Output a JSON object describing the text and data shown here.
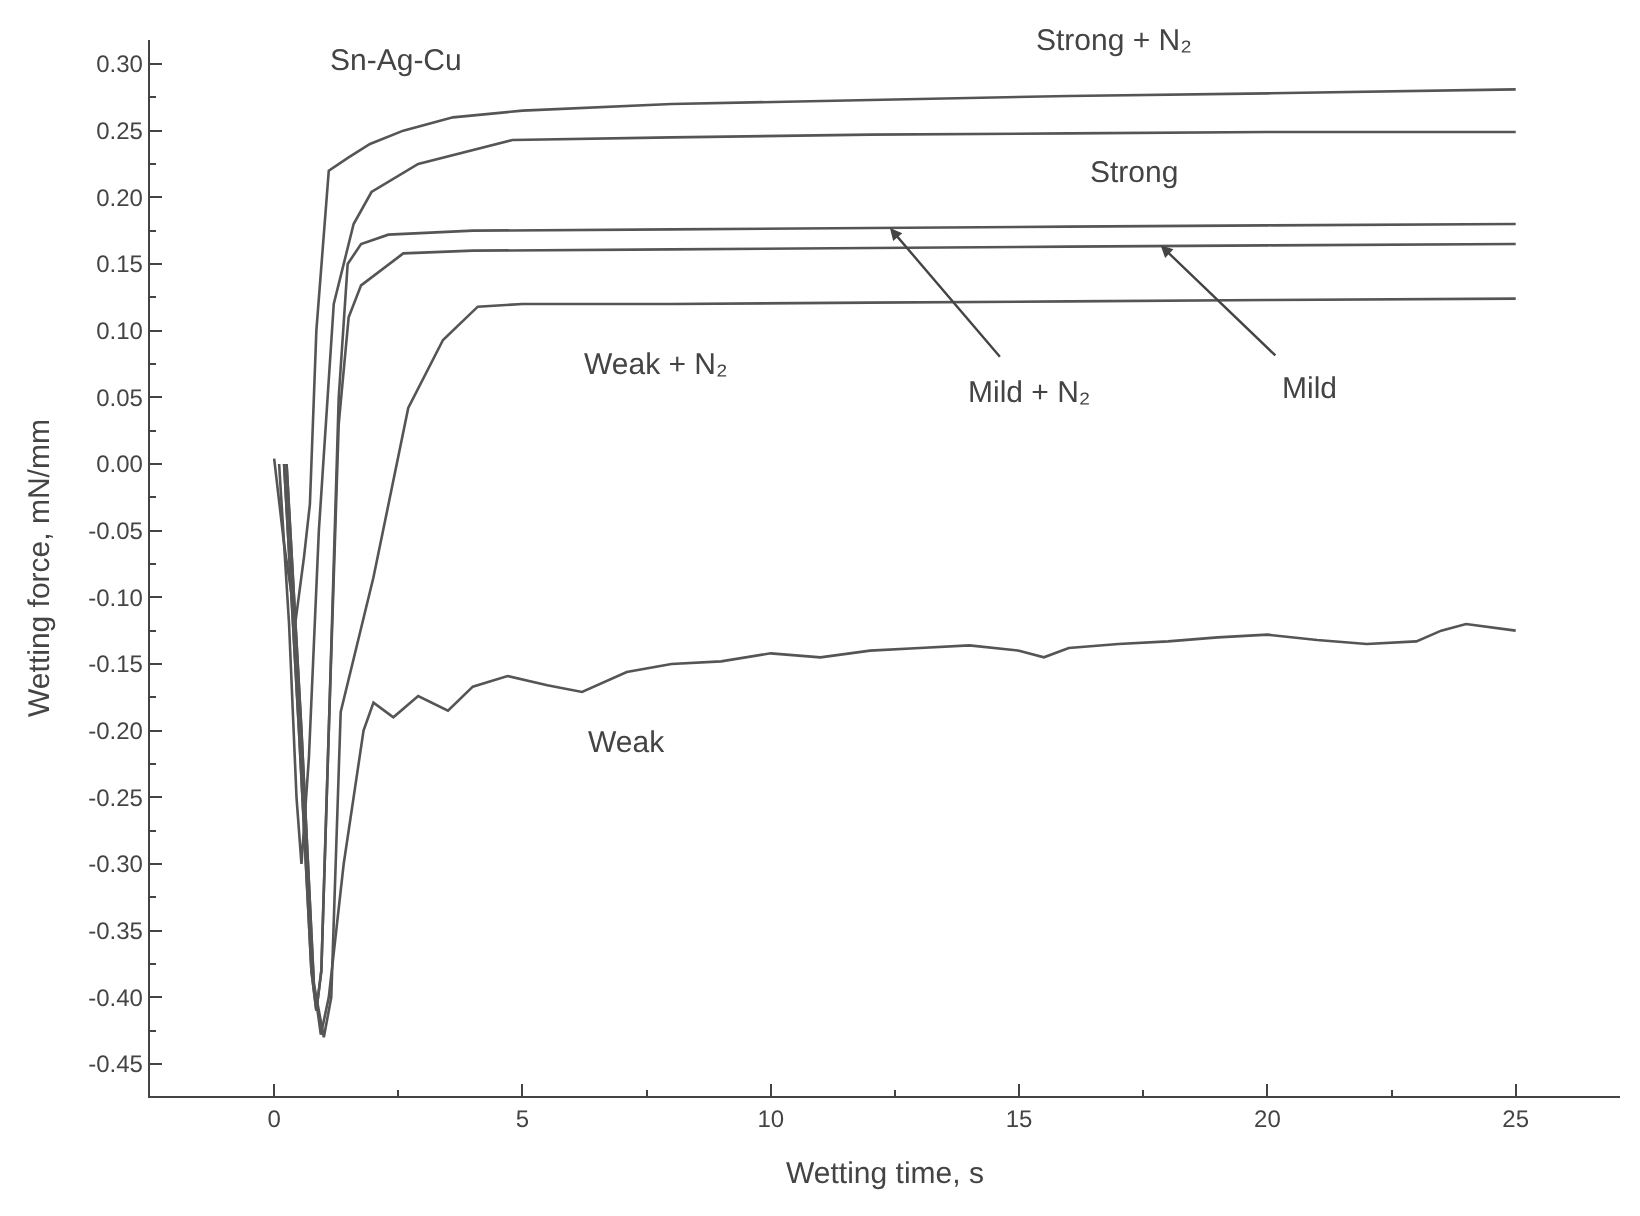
{
  "chart_data": {
    "type": "line",
    "xlabel": "Wetting time, s",
    "ylabel": "Wetting force, mN/mm",
    "xlim": [
      -2.5,
      27.1
    ],
    "ylim": [
      -0.474,
      0.318
    ],
    "xticks": [
      0,
      5,
      10,
      15,
      20,
      25
    ],
    "yticks": [
      {
        "value": 0.3,
        "label": "0.30"
      },
      {
        "value": 0.25,
        "label": "0.25"
      },
      {
        "value": 0.2,
        "label": "0.20"
      },
      {
        "value": 0.15,
        "label": "0.15"
      },
      {
        "value": 0.1,
        "label": "0.10"
      },
      {
        "value": 0.05,
        "label": "0.05"
      },
      {
        "value": 0,
        "label": "0.00"
      },
      {
        "value": -0.05,
        "label": "-0.05"
      },
      {
        "value": -0.1,
        "label": "-0.10"
      },
      {
        "value": -0.15,
        "label": "-0.15"
      },
      {
        "value": -0.2,
        "label": "-0.20"
      },
      {
        "value": -0.25,
        "label": "-0.25"
      },
      {
        "value": -0.3,
        "label": "-0.30"
      },
      {
        "value": -0.35,
        "label": "-0.35"
      },
      {
        "value": -0.4,
        "label": "-0.40"
      },
      {
        "value": -0.45,
        "label": "-0.45"
      }
    ],
    "marker": "none",
    "line_style": "solid",
    "series": [
      {
        "color": "#555555",
        "x": [
          0,
          0.2,
          0.43,
          0.6,
          0.72,
          0.85,
          1.1,
          1.5,
          1.93,
          2.6,
          3.6,
          5,
          8,
          12,
          16,
          20,
          25
        ],
        "values": [
          0.004,
          -0.06,
          -0.118,
          -0.07,
          -0.03,
          0.1,
          0.22,
          0.23,
          0.24,
          0.25,
          0.26,
          0.265,
          0.27,
          0.273,
          0.276,
          0.278,
          0.281
        ]
      },
      {
        "color": "#555555",
        "x": [
          0.1,
          0.3,
          0.45,
          0.55,
          0.7,
          0.9,
          1.2,
          1.6,
          1.96,
          2.9,
          4.8,
          8,
          12,
          16,
          20,
          25
        ],
        "values": [
          0.0,
          -0.12,
          -0.25,
          -0.3,
          -0.22,
          -0.05,
          0.12,
          0.18,
          0.204,
          0.225,
          0.243,
          0.245,
          0.247,
          0.248,
          0.249,
          0.249
        ]
      },
      {
        "color": "#555555",
        "x": [
          0.2,
          0.5,
          0.75,
          0.85,
          0.95,
          1.1,
          1.3,
          1.48,
          1.75,
          2.3,
          4,
          8,
          12,
          16,
          20,
          25
        ],
        "values": [
          0,
          -0.2,
          -0.38,
          -0.41,
          -0.38,
          -0.2,
          0.05,
          0.15,
          0.165,
          0.172,
          0.175,
          0.176,
          0.177,
          0.178,
          0.179,
          0.18
        ]
      },
      {
        "color": "#555555",
        "x": [
          0.2,
          0.5,
          0.75,
          0.85,
          0.95,
          1.1,
          1.3,
          1.5,
          1.75,
          2.6,
          4,
          8,
          12,
          16,
          20,
          25
        ],
        "values": [
          0,
          -0.2,
          -0.38,
          -0.41,
          -0.38,
          -0.2,
          0.03,
          0.11,
          0.134,
          0.158,
          0.16,
          0.161,
          0.162,
          0.163,
          0.164,
          0.165
        ]
      },
      {
        "color": "#555555",
        "x": [
          0.25,
          0.55,
          0.8,
          1.0,
          1.15,
          1.34,
          2.0,
          2.7,
          3.4,
          4.1,
          5,
          8,
          12,
          16,
          20,
          25
        ],
        "values": [
          0,
          -0.2,
          -0.39,
          -0.43,
          -0.4,
          -0.186,
          -0.085,
          0.042,
          0.093,
          0.118,
          0.12,
          0.12,
          0.121,
          0.122,
          0.123,
          0.124
        ]
      },
      {
        "color": "#555555",
        "x": [
          0.25,
          0.55,
          0.8,
          0.94,
          1.1,
          1.4,
          1.8,
          2.0,
          2.4,
          2.9,
          3.5,
          4.0,
          4.7,
          5.5,
          6.2,
          7.1,
          8,
          9,
          10,
          11,
          12,
          13,
          14,
          15,
          15.5,
          16,
          17,
          18,
          19,
          20,
          21,
          22,
          23,
          23.5,
          24,
          25
        ],
        "values": [
          0,
          -0.2,
          -0.39,
          -0.428,
          -0.4,
          -0.3,
          -0.2,
          -0.179,
          -0.19,
          -0.174,
          -0.185,
          -0.167,
          -0.159,
          -0.166,
          -0.171,
          -0.156,
          -0.15,
          -0.148,
          -0.142,
          -0.145,
          -0.14,
          -0.138,
          -0.136,
          -0.14,
          -0.145,
          -0.138,
          -0.135,
          -0.133,
          -0.13,
          -0.128,
          -0.132,
          -0.135,
          -0.133,
          -0.125,
          -0.12,
          -0.125
        ]
      }
    ],
    "annotations": [
      "Sn-Ag-Cu",
      {
        "text": "Strong + N₂",
        "x": 16.9,
        "y": 0.279
      },
      {
        "text": "Strong",
        "x": 17.3,
        "y": 0.249
      },
      {
        "text": "Weak + N₂",
        "x": 7.7,
        "y": 0.12
      },
      {
        "text": "Mild + N₂",
        "x": 12.4,
        "y": 0.177
      },
      {
        "text": "Mild",
        "x": 17.85,
        "y": 0.164
      },
      {
        "text": "Weak",
        "x": 7.1,
        "y": -0.156
      }
    ]
  }
}
